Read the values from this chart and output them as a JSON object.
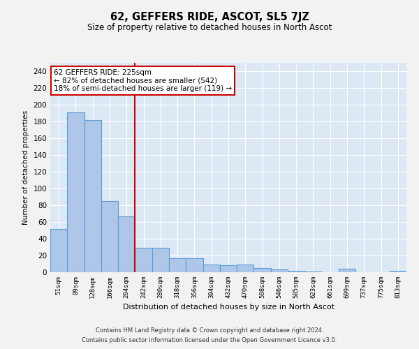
{
  "title": "62, GEFFERS RIDE, ASCOT, SL5 7JZ",
  "subtitle": "Size of property relative to detached houses in North Ascot",
  "xlabel": "Distribution of detached houses by size in North Ascot",
  "ylabel": "Number of detached properties",
  "categories": [
    "51sqm",
    "89sqm",
    "128sqm",
    "166sqm",
    "204sqm",
    "242sqm",
    "280sqm",
    "318sqm",
    "356sqm",
    "394sqm",
    "432sqm",
    "470sqm",
    "508sqm",
    "546sqm",
    "585sqm",
    "623sqm",
    "661sqm",
    "699sqm",
    "737sqm",
    "775sqm",
    "813sqm"
  ],
  "values": [
    52,
    191,
    182,
    85,
    67,
    29,
    29,
    17,
    17,
    9,
    8,
    9,
    5,
    3,
    2,
    1,
    0,
    4,
    0,
    0,
    2
  ],
  "bar_color": "#aec6e8",
  "bar_edge_color": "#5b9bd5",
  "vline_color": "#cc0000",
  "vline_index": 4.5,
  "annotation_line1": "62 GEFFERS RIDE: 225sqm",
  "annotation_line2": "← 82% of detached houses are smaller (542)",
  "annotation_line3": "18% of semi-detached houses are larger (119) →",
  "annotation_box_color": "#ffffff",
  "annotation_box_edge": "#cc0000",
  "ylim": [
    0,
    250
  ],
  "yticks": [
    0,
    20,
    40,
    60,
    80,
    100,
    120,
    140,
    160,
    180,
    200,
    220,
    240
  ],
  "bg_color": "#dce9f5",
  "grid_color": "#ffffff",
  "fig_bg_color": "#f2f2f2",
  "footer1": "Contains HM Land Registry data © Crown copyright and database right 2024.",
  "footer2": "Contains public sector information licensed under the Open Government Licence v3.0."
}
